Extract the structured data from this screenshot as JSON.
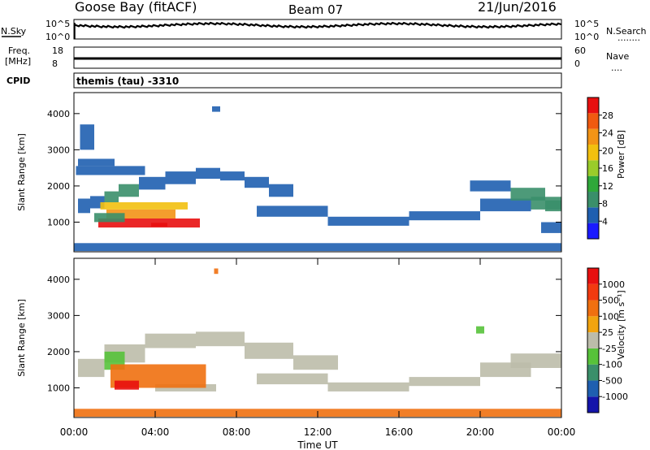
{
  "header": {
    "station": "Goose Bay (fitACF)",
    "beam": "Beam 07",
    "date": "21/Jun/2016"
  },
  "noise_panel": {
    "left_label": "N.Sky",
    "right_label": "N.Search",
    "right_legend": "........",
    "left_ticks": [
      "10^5",
      "10^0"
    ],
    "right_ticks": [
      "10^5",
      "10^0"
    ]
  },
  "freq_panel": {
    "left_label_1": "Freq.",
    "left_label_2": "[MHz]",
    "right_label": "Nave",
    "right_legend": "....",
    "left_ticks": [
      "18",
      "8"
    ],
    "right_ticks": [
      "60",
      "0"
    ]
  },
  "cpid_panel": {
    "left_label": "CPID",
    "value": "themis (tau) -3310"
  },
  "colors": {
    "power": [
      "#1a1aff",
      "#1f5fb0",
      "#3a8f6a",
      "#2fa83a",
      "#9acc2a",
      "#f2c00f",
      "#f39416",
      "#f05a10",
      "#e81010"
    ],
    "velocity": [
      "#1414aa",
      "#1f5fb0",
      "#3a8f6a",
      "#57c23a",
      "#bcbcaa",
      "#f2a40f",
      "#f07010",
      "#f23a10",
      "#e81010"
    ]
  },
  "chart_data": [
    {
      "type": "heatmap",
      "name": "power",
      "ylabel": "Slant Range [km]",
      "yticks": [
        "4000",
        "3000",
        "2000",
        "1000"
      ],
      "ylim": [
        180,
        4580
      ],
      "colorbar_label": "Power [dB]",
      "colorbar_ticks": [
        "28",
        "24",
        "20",
        "16",
        "12",
        "8",
        "4"
      ],
      "colorbar_range": [
        0,
        30
      ],
      "bands": [
        {
          "x": [
            0.2,
            0.8
          ],
          "y": [
            1250,
            1650
          ],
          "level": "blue"
        },
        {
          "x": [
            0.8,
            1.5
          ],
          "y": [
            1380,
            1720
          ],
          "level": "blue"
        },
        {
          "x": [
            1.5,
            2.2
          ],
          "y": [
            1550,
            1850
          ],
          "level": "green"
        },
        {
          "x": [
            2.2,
            3.2
          ],
          "y": [
            1700,
            2050
          ],
          "level": "green"
        },
        {
          "x": [
            3.2,
            4.5
          ],
          "y": [
            1900,
            2250
          ],
          "level": "blue"
        },
        {
          "x": [
            4.5,
            6.0
          ],
          "y": [
            2050,
            2400
          ],
          "level": "blue"
        },
        {
          "x": [
            6.0,
            7.2
          ],
          "y": [
            2200,
            2500
          ],
          "level": "blue"
        },
        {
          "x": [
            7.2,
            8.4
          ],
          "y": [
            2150,
            2400
          ],
          "level": "blue"
        },
        {
          "x": [
            8.4,
            9.6
          ],
          "y": [
            1950,
            2250
          ],
          "level": "blue"
        },
        {
          "x": [
            9.6,
            10.8
          ],
          "y": [
            1700,
            2050
          ],
          "level": "blue"
        },
        {
          "x": [
            0.1,
            3.5
          ],
          "y": [
            2300,
            2550
          ],
          "level": "blue"
        },
        {
          "x": [
            0.2,
            2.0
          ],
          "y": [
            2550,
            2750
          ],
          "level": "blue"
        },
        {
          "x": [
            1.2,
            6.2
          ],
          "y": [
            850,
            1100
          ],
          "level": "red"
        },
        {
          "x": [
            1.6,
            5.0
          ],
          "y": [
            1100,
            1350
          ],
          "level": "orange"
        },
        {
          "x": [
            1.3,
            5.6
          ],
          "y": [
            1350,
            1550
          ],
          "level": "yellow"
        },
        {
          "x": [
            1.0,
            2.5
          ],
          "y": [
            1000,
            1250
          ],
          "level": "green"
        },
        {
          "x": [
            3.8,
            4.6
          ],
          "y": [
            880,
            980
          ],
          "level": "red"
        },
        {
          "x": [
            9.0,
            12.5
          ],
          "y": [
            1150,
            1450
          ],
          "level": "blue"
        },
        {
          "x": [
            12.5,
            16.5
          ],
          "y": [
            900,
            1150
          ],
          "level": "blue"
        },
        {
          "x": [
            16.5,
            20.0
          ],
          "y": [
            1050,
            1300
          ],
          "level": "blue"
        },
        {
          "x": [
            20.0,
            22.5
          ],
          "y": [
            1300,
            1650
          ],
          "level": "blue"
        },
        {
          "x": [
            22.5,
            24.0
          ],
          "y": [
            1350,
            1700
          ],
          "level": "green"
        },
        {
          "x": [
            19.5,
            21.5
          ],
          "y": [
            1850,
            2150
          ],
          "level": "blue"
        },
        {
          "x": [
            21.5,
            23.2
          ],
          "y": [
            1600,
            1950
          ],
          "level": "green"
        },
        {
          "x": [
            23.2,
            24.0
          ],
          "y": [
            1300,
            1600
          ],
          "level": "green"
        },
        {
          "x": [
            23.0,
            24.0
          ],
          "y": [
            700,
            1000
          ],
          "level": "blue"
        },
        {
          "x": [
            0.3,
            1.0
          ],
          "y": [
            3000,
            3700
          ],
          "level": "blue"
        },
        {
          "x": [
            6.8,
            7.2
          ],
          "y": [
            4050,
            4200
          ],
          "level": "blue"
        },
        {
          "x": [
            0.0,
            24.0
          ],
          "y": [
            200,
            420
          ],
          "level": "blue"
        }
      ]
    },
    {
      "type": "heatmap",
      "name": "velocity",
      "ylabel": "Slant Range [km]",
      "yticks": [
        "4000",
        "3000",
        "2000",
        "1000"
      ],
      "ylim": [
        180,
        4580
      ],
      "colorbar_label": "Velocity [m s⁻¹]",
      "colorbar_ticks": [
        "1000",
        "500",
        "100",
        "25",
        "-25",
        "-100",
        "-500",
        "-1000"
      ],
      "bands": [
        {
          "x": [
            0.2,
            1.5
          ],
          "y": [
            1300,
            1800
          ],
          "level": "gray"
        },
        {
          "x": [
            1.5,
            3.5
          ],
          "y": [
            1700,
            2200
          ],
          "level": "gray"
        },
        {
          "x": [
            3.5,
            6.0
          ],
          "y": [
            2100,
            2500
          ],
          "level": "gray"
        },
        {
          "x": [
            6.0,
            8.4
          ],
          "y": [
            2150,
            2550
          ],
          "level": "gray"
        },
        {
          "x": [
            8.4,
            10.8
          ],
          "y": [
            1800,
            2250
          ],
          "level": "gray"
        },
        {
          "x": [
            10.8,
            13.0
          ],
          "y": [
            1500,
            1900
          ],
          "level": "gray"
        },
        {
          "x": [
            4.0,
            7.0
          ],
          "y": [
            900,
            1100
          ],
          "level": "gray"
        },
        {
          "x": [
            1.5,
            2.5
          ],
          "y": [
            1500,
            2000
          ],
          "level": "green"
        },
        {
          "x": [
            1.8,
            6.5
          ],
          "y": [
            1000,
            1650
          ],
          "level": "orange"
        },
        {
          "x": [
            2.0,
            3.2
          ],
          "y": [
            950,
            1200
          ],
          "level": "red"
        },
        {
          "x": [
            9.0,
            12.5
          ],
          "y": [
            1100,
            1400
          ],
          "level": "gray"
        },
        {
          "x": [
            12.5,
            16.5
          ],
          "y": [
            900,
            1150
          ],
          "level": "gray"
        },
        {
          "x": [
            16.5,
            20.0
          ],
          "y": [
            1050,
            1300
          ],
          "level": "gray"
        },
        {
          "x": [
            20.0,
            22.5
          ],
          "y": [
            1300,
            1700
          ],
          "level": "gray"
        },
        {
          "x": [
            21.5,
            24.0
          ],
          "y": [
            1550,
            1950
          ],
          "level": "gray"
        },
        {
          "x": [
            19.8,
            20.2
          ],
          "y": [
            2500,
            2700
          ],
          "level": "green"
        },
        {
          "x": [
            6.9,
            7.1
          ],
          "y": [
            4150,
            4300
          ],
          "level": "orange"
        },
        {
          "x": [
            0.0,
            24.0
          ],
          "y": [
            200,
            420
          ],
          "level": "orange"
        }
      ]
    }
  ],
  "time_axis": {
    "ticks": [
      "00:00",
      "04:00",
      "08:00",
      "12:00",
      "16:00",
      "20:00",
      "00:00"
    ],
    "xlabel": "Time UT"
  }
}
